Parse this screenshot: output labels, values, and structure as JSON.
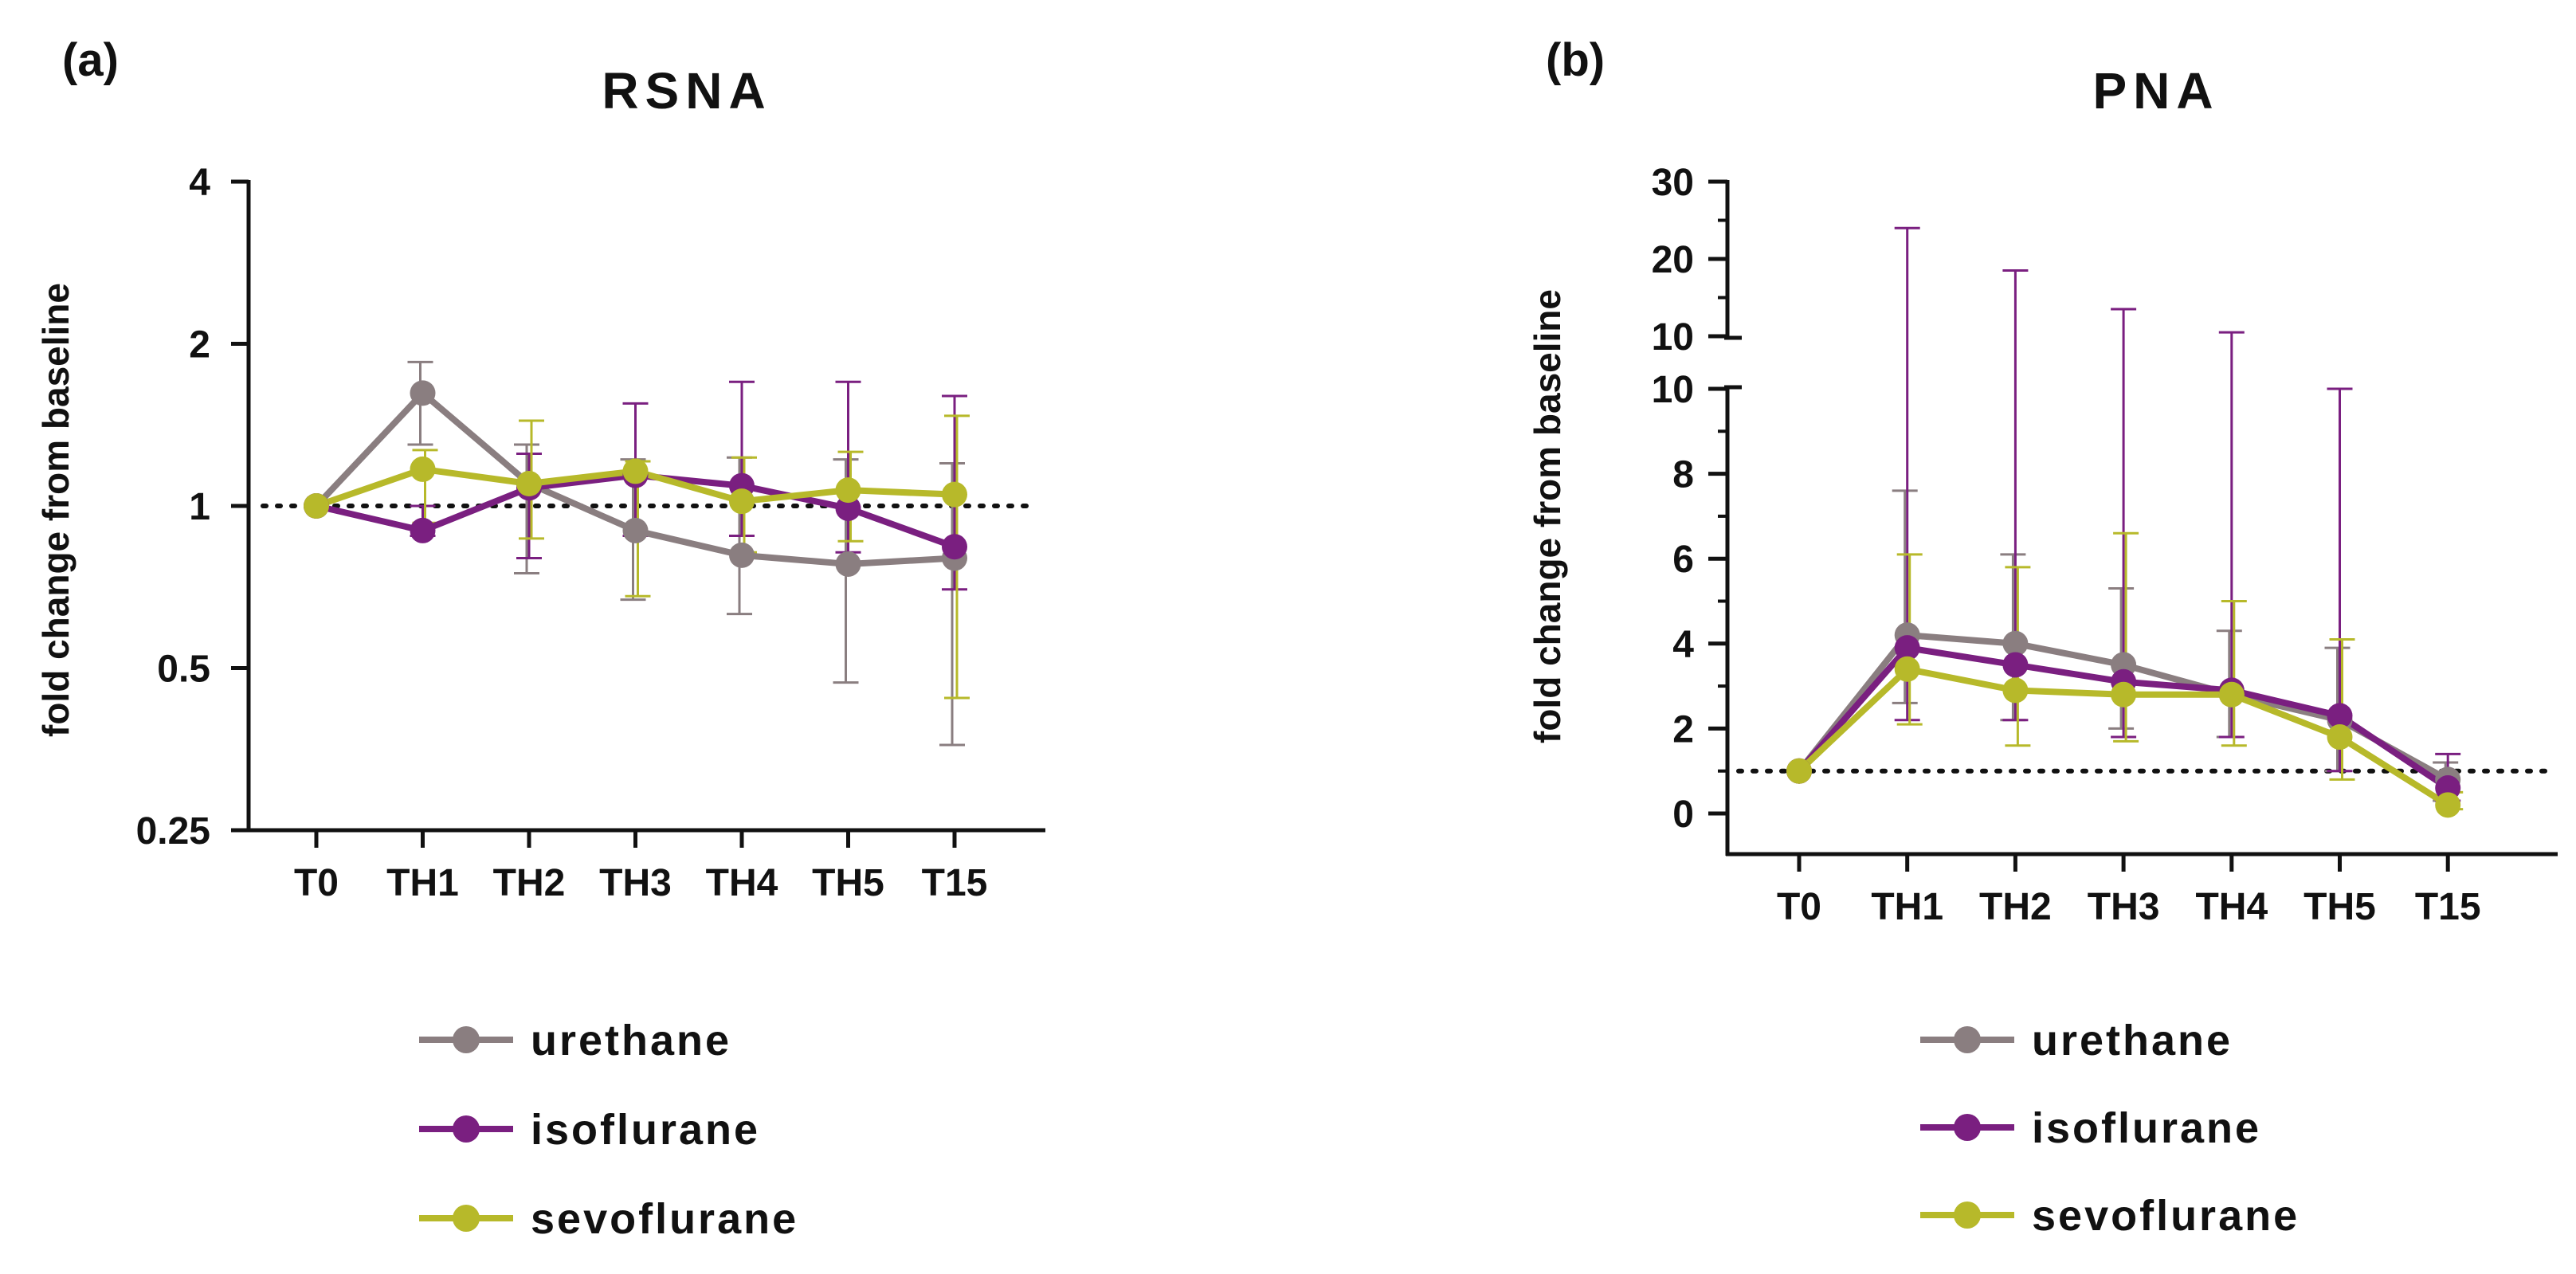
{
  "colors": {
    "urethane": "#8a7e80",
    "isoflurane": "#7a1f80",
    "sevoflurane": "#b7b92a",
    "axis": "#111111"
  },
  "legend": [
    {
      "key": "urethane",
      "label": "urethane"
    },
    {
      "key": "isoflurane",
      "label": "isoflurane"
    },
    {
      "key": "sevoflurane",
      "label": "sevoflurane"
    }
  ],
  "chart_data": [
    {
      "panel": "(a)",
      "type": "line",
      "title": "RSNA",
      "ylabel": "fold change from baseline",
      "xlabel": "",
      "yscale": "log2",
      "ylim": [
        0.25,
        4
      ],
      "yticks": [
        0.25,
        0.5,
        1,
        2,
        4
      ],
      "ytick_labels": [
        "0.25",
        "0.5",
        "1",
        "2",
        "4"
      ],
      "reference_line": 1,
      "categories": [
        "T0",
        "TH1",
        "TH2",
        "TH3",
        "TH4",
        "TH5",
        "T15"
      ],
      "series": [
        {
          "name": "urethane",
          "values": [
            1.0,
            1.62,
            1.1,
            0.9,
            0.81,
            0.78,
            0.8
          ],
          "err_low": [
            1.0,
            1.3,
            0.75,
            0.67,
            0.63,
            0.47,
            0.36
          ],
          "err_high": [
            1.0,
            1.85,
            1.3,
            1.22,
            1.23,
            1.22,
            1.2
          ]
        },
        {
          "name": "isoflurane",
          "values": [
            1.0,
            0.9,
            1.08,
            1.14,
            1.09,
            0.99,
            0.84
          ],
          "err_low": [
            1.0,
            0.88,
            0.8,
            0.88,
            0.88,
            0.82,
            0.7
          ],
          "err_high": [
            1.0,
            1.0,
            1.25,
            1.55,
            1.7,
            1.7,
            1.6
          ]
        },
        {
          "name": "sevoflurane",
          "values": [
            1.0,
            1.17,
            1.1,
            1.16,
            1.02,
            1.07,
            1.05
          ],
          "err_low": [
            1.0,
            0.93,
            0.87,
            0.68,
            0.82,
            0.86,
            0.44
          ],
          "err_high": [
            1.0,
            1.27,
            1.44,
            1.21,
            1.23,
            1.26,
            1.47
          ]
        }
      ]
    },
    {
      "panel": "(b)",
      "type": "line",
      "title": "PNA",
      "ylabel": "fold change from baseline",
      "xlabel": "",
      "yscale": "linear with axis break",
      "ylim": [
        -1,
        30
      ],
      "lower_segment": [
        0,
        10
      ],
      "upper_segment": [
        10,
        30
      ],
      "lower_ticks": [
        0,
        2,
        4,
        6,
        8,
        10
      ],
      "upper_ticks": [
        10,
        20,
        30
      ],
      "ytick_labels_lower": [
        "0",
        "2",
        "4",
        "6",
        "8",
        "10"
      ],
      "ytick_labels_upper": [
        "10",
        "20",
        "30"
      ],
      "reference_line": 1,
      "categories": [
        "T0",
        "TH1",
        "TH2",
        "TH3",
        "TH4",
        "TH5",
        "T15"
      ],
      "series": [
        {
          "name": "urethane",
          "values": [
            1.0,
            4.2,
            4.0,
            3.5,
            2.8,
            2.2,
            0.8
          ],
          "err_low": [
            1.0,
            2.6,
            2.2,
            2.0,
            1.8,
            1.0,
            0.3
          ],
          "err_high": [
            1.0,
            7.6,
            6.1,
            5.3,
            4.3,
            3.9,
            1.2
          ]
        },
        {
          "name": "isoflurane",
          "values": [
            1.0,
            3.9,
            3.5,
            3.1,
            2.9,
            2.3,
            0.6
          ],
          "err_low": [
            1.0,
            2.2,
            2.2,
            1.8,
            1.8,
            1.0,
            0.3
          ],
          "err_high": [
            1.0,
            24,
            18.5,
            13.5,
            10.5,
            10,
            1.4
          ]
        },
        {
          "name": "sevoflurane",
          "values": [
            1.0,
            3.4,
            2.9,
            2.8,
            2.8,
            1.8,
            0.2
          ],
          "err_low": [
            1.0,
            2.1,
            1.6,
            1.7,
            1.6,
            0.8,
            0.1
          ],
          "err_high": [
            1.0,
            6.1,
            5.8,
            6.6,
            5.0,
            4.1,
            0.5
          ]
        }
      ]
    }
  ]
}
